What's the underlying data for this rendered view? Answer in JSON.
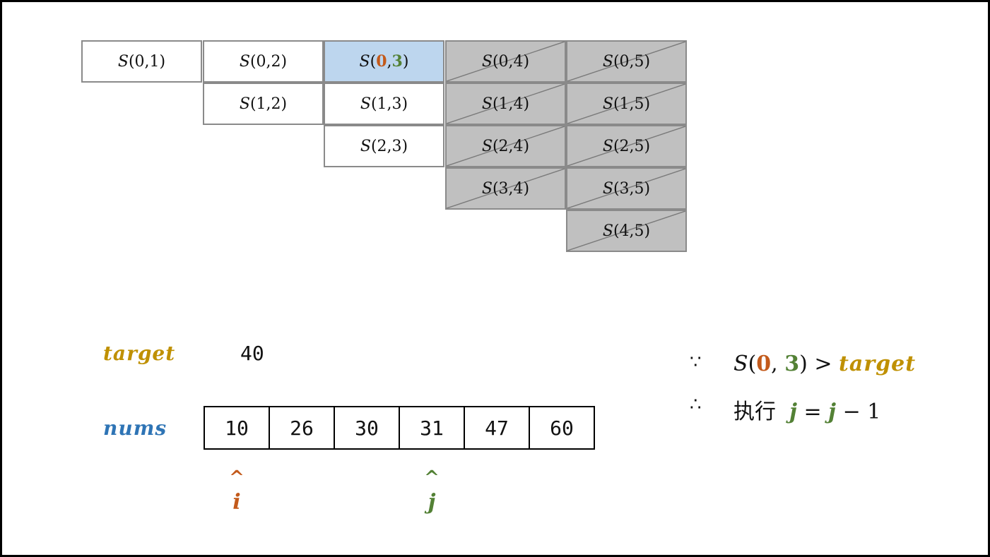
{
  "matrix": {
    "rows": [
      [
        {
          "i": "0",
          "j": "1",
          "state": "normal"
        },
        {
          "i": "0",
          "j": "2",
          "state": "normal"
        },
        {
          "i": "0",
          "j": "3",
          "state": "current"
        },
        {
          "i": "0",
          "j": "4",
          "state": "excluded"
        },
        {
          "i": "0",
          "j": "5",
          "state": "excluded"
        }
      ],
      [
        {
          "i": "1",
          "j": "2",
          "state": "normal"
        },
        {
          "i": "1",
          "j": "3",
          "state": "normal"
        },
        {
          "i": "1",
          "j": "4",
          "state": "excluded"
        },
        {
          "i": "1",
          "j": "5",
          "state": "excluded"
        }
      ],
      [
        {
          "i": "2",
          "j": "3",
          "state": "normal"
        },
        {
          "i": "2",
          "j": "4",
          "state": "excluded"
        },
        {
          "i": "2",
          "j": "5",
          "state": "excluded"
        }
      ],
      [
        {
          "i": "3",
          "j": "4",
          "state": "excluded"
        },
        {
          "i": "3",
          "j": "5",
          "state": "excluded"
        }
      ],
      [
        {
          "i": "4",
          "j": "5",
          "state": "excluded"
        }
      ]
    ],
    "fn": "S"
  },
  "target": {
    "label": "target",
    "value": "40"
  },
  "nums": {
    "label": "nums",
    "values": [
      "10",
      "26",
      "30",
      "31",
      "47",
      "60"
    ]
  },
  "pointers": {
    "i": {
      "caret": "^",
      "name": "i",
      "index": 0
    },
    "j": {
      "caret": "^",
      "name": "j",
      "index": 3
    }
  },
  "explanation": {
    "because_symbol": "∵",
    "therefore_symbol": "∴",
    "cond_fn": "S",
    "cond_i": "0",
    "cond_j": "3",
    "cond_op": ">",
    "cond_rhs": "target",
    "action_prefix": "执行",
    "action_lhs": "j",
    "action_eq": "=",
    "action_rhs_var": "j",
    "action_rhs_rest": "− 1"
  },
  "colors": {
    "i": "#c35a1b",
    "j": "#538135",
    "target": "#bf9000",
    "nums": "#2e74b5",
    "current": "#bdd6ee",
    "excluded": "#c0c0c0"
  }
}
